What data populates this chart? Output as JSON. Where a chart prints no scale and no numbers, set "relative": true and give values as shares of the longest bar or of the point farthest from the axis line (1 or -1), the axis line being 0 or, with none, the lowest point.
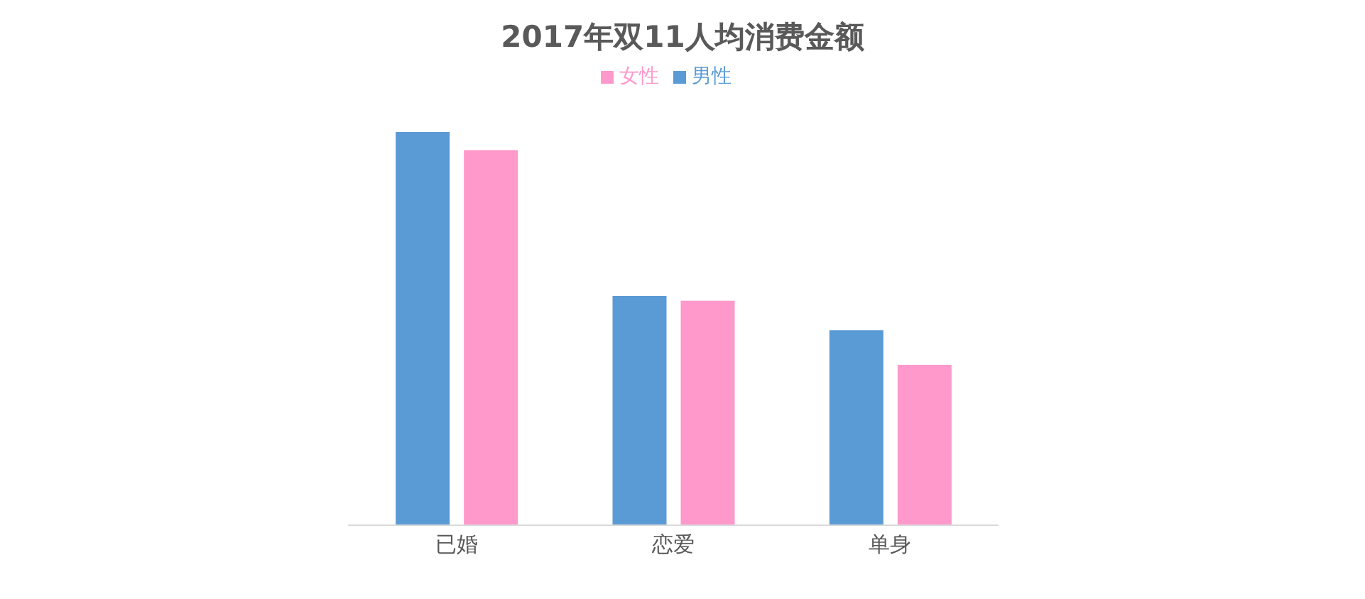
{
  "chart_data": {
    "type": "bar",
    "title": "2017年双11人均消费金额",
    "relative": true,
    "categories": [
      "已婚",
      "恋爱",
      "单身"
    ],
    "legend": "top",
    "grid": false,
    "series": [
      {
        "name": "男性",
        "color": "#5b9bd5",
        "values": [
          1,
          0.583,
          0.496
        ]
      },
      {
        "name": "女性",
        "color": "#ff99cc",
        "values": [
          0.954,
          0.571,
          0.408
        ]
      }
    ]
  }
}
